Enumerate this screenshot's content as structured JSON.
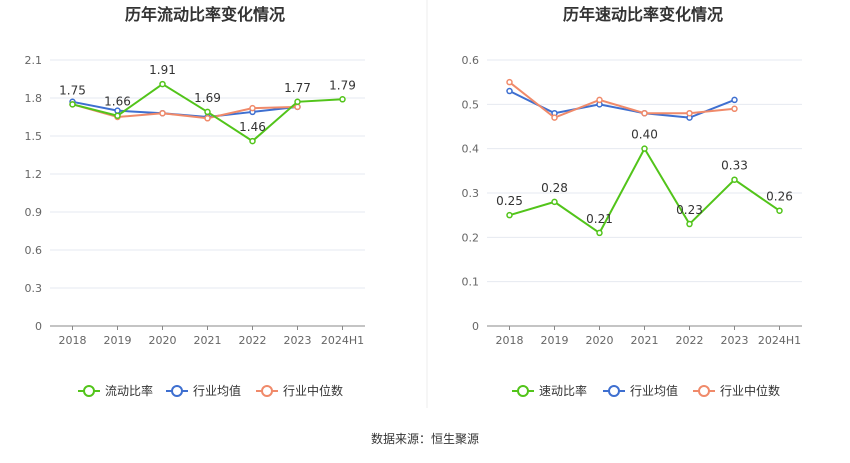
{
  "source": "数据来源：恒生聚源",
  "colors": {
    "ratio": "#52c41a",
    "avg": "#3e6fd0",
    "median": "#f08a6a",
    "grid": "#e6e9f0",
    "axis": "#666666"
  },
  "chart_data": [
    {
      "type": "line",
      "title": "历年流动比率变化情况",
      "categories": [
        "2018",
        "2019",
        "2020",
        "2021",
        "2022",
        "2023",
        "2024H1"
      ],
      "ylim": [
        0,
        2.1
      ],
      "yticks": [
        "0",
        "0.3",
        "0.6",
        "0.9",
        "1.2",
        "1.5",
        "1.8",
        "2.1"
      ],
      "legend_position": "bottom",
      "series": [
        {
          "name": "流动比率",
          "color": "#52c41a",
          "values": [
            1.75,
            1.66,
            1.91,
            1.69,
            1.46,
            1.77,
            1.79
          ],
          "labels": [
            "1.75",
            "1.66",
            "1.91",
            "1.69",
            "1.46",
            "1.77",
            "1.79"
          ]
        },
        {
          "name": "行业均值",
          "color": "#3e6fd0",
          "values": [
            1.77,
            1.7,
            1.68,
            1.65,
            1.69,
            1.73,
            null
          ]
        },
        {
          "name": "行业中位数",
          "color": "#f08a6a",
          "values": [
            1.75,
            1.65,
            1.68,
            1.64,
            1.72,
            1.73,
            null
          ]
        }
      ]
    },
    {
      "type": "line",
      "title": "历年速动比率变化情况",
      "categories": [
        "2018",
        "2019",
        "2020",
        "2021",
        "2022",
        "2023",
        "2024H1"
      ],
      "ylim": [
        0,
        0.6
      ],
      "yticks": [
        "0",
        "0.1",
        "0.2",
        "0.3",
        "0.4",
        "0.5",
        "0.6"
      ],
      "legend_position": "bottom",
      "series": [
        {
          "name": "速动比率",
          "color": "#52c41a",
          "values": [
            0.25,
            0.28,
            0.21,
            0.4,
            0.23,
            0.33,
            0.26
          ],
          "labels": [
            "0.25",
            "0.28",
            "0.21",
            "0.40",
            "0.23",
            "0.33",
            "0.26"
          ]
        },
        {
          "name": "行业均值",
          "color": "#3e6fd0",
          "values": [
            0.53,
            0.48,
            0.5,
            0.48,
            0.47,
            0.51,
            null
          ]
        },
        {
          "name": "行业中位数",
          "color": "#f08a6a",
          "values": [
            0.55,
            0.47,
            0.51,
            0.48,
            0.48,
            0.49,
            null
          ]
        }
      ]
    }
  ]
}
